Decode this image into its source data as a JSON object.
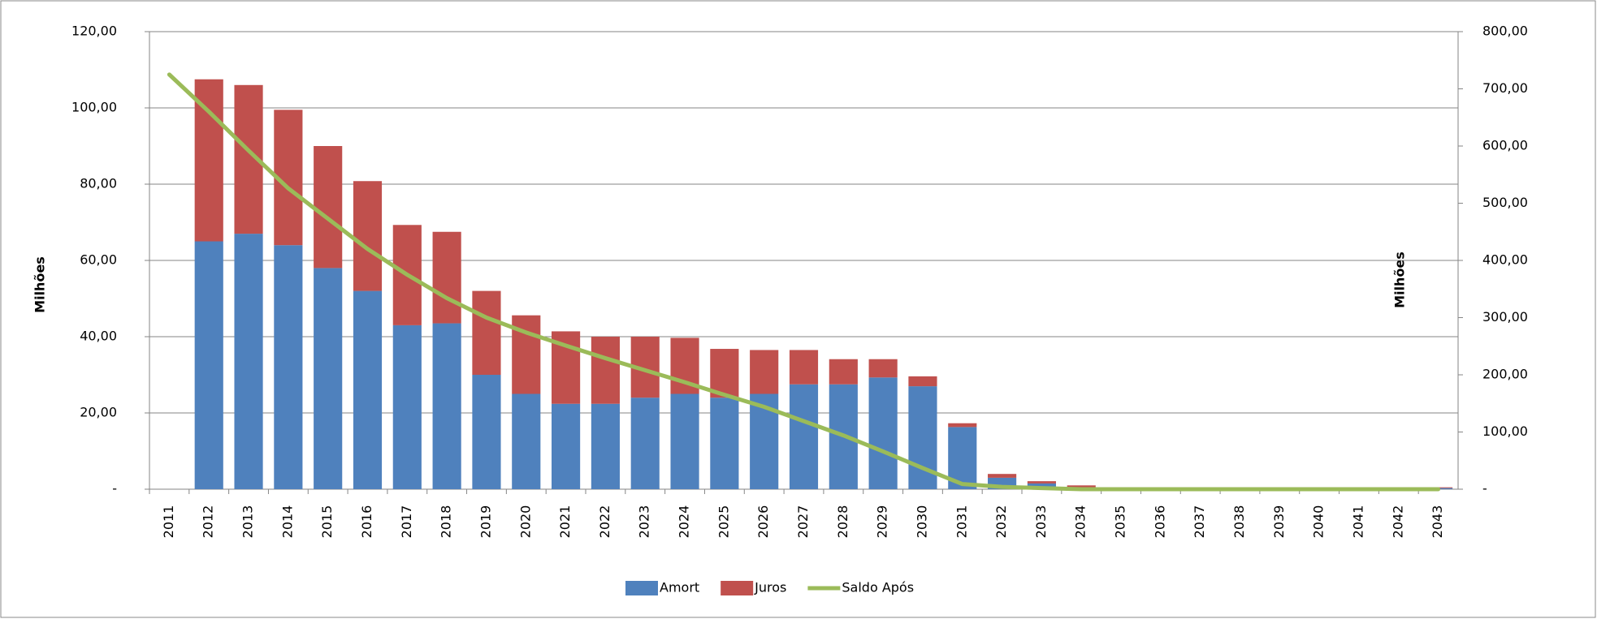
{
  "chart_data": {
    "type": "bar",
    "stacked": true,
    "y_label": "Milhões",
    "y2_label": "Milhões",
    "categories": [
      "2011",
      "2012",
      "2013",
      "2014",
      "2015",
      "2016",
      "2017",
      "2018",
      "2019",
      "2020",
      "2021",
      "2022",
      "2023",
      "2024",
      "2025",
      "2026",
      "2027",
      "2028",
      "2029",
      "2030",
      "2031",
      "2032",
      "2033",
      "2034",
      "2035",
      "2036",
      "2037",
      "2038",
      "2039",
      "2040",
      "2041",
      "2042",
      "2043"
    ],
    "series": [
      {
        "name": "Amort",
        "color": "#4f81bd",
        "type": "bar",
        "values": [
          0,
          65,
          67,
          64,
          58,
          52,
          43,
          43.5,
          30,
          25,
          22.4,
          22.4,
          24,
          25,
          24,
          25,
          27.5,
          27.5,
          29.3,
          27,
          16.3,
          3,
          1.5,
          0.5,
          0,
          0,
          0,
          0,
          0,
          0,
          0,
          0,
          0.3
        ]
      },
      {
        "name": "Juros",
        "color": "#c0504d",
        "type": "bar",
        "values": [
          0,
          42.5,
          39,
          35.5,
          32,
          28.8,
          26.3,
          24,
          22,
          20.6,
          19,
          17.6,
          16,
          14.7,
          12.8,
          11.5,
          9,
          6.6,
          4.8,
          2.6,
          1,
          1,
          0.6,
          0.5,
          0,
          0,
          0,
          0,
          0,
          0,
          0,
          0,
          0.2
        ]
      },
      {
        "name": "Saldo Após",
        "color": "#9bbb59",
        "type": "line",
        "axis": "y2",
        "values": [
          725,
          660,
          592,
          526,
          473,
          420,
          375,
          334,
          300,
          274,
          251,
          229,
          208,
          187,
          165,
          144,
          119,
          94,
          66,
          37,
          9,
          4,
          2,
          0,
          0,
          0,
          0,
          0,
          0,
          0,
          0,
          0,
          0
        ]
      }
    ],
    "ylim": [
      0,
      120
    ],
    "yticks": [
      {
        "value": 0,
        "label": "-"
      },
      {
        "value": 20,
        "label": "20,00"
      },
      {
        "value": 40,
        "label": "40,00"
      },
      {
        "value": 60,
        "label": "60,00"
      },
      {
        "value": 80,
        "label": "80,00"
      },
      {
        "value": 100,
        "label": "100,00"
      },
      {
        "value": 120,
        "label": "120,00"
      }
    ],
    "y2lim": [
      0,
      800
    ],
    "y2ticks": [
      {
        "value": 0,
        "label": "-"
      },
      {
        "value": 100,
        "label": "100,00"
      },
      {
        "value": 200,
        "label": "200,00"
      },
      {
        "value": 300,
        "label": "300,00"
      },
      {
        "value": 400,
        "label": "400,00"
      },
      {
        "value": 500,
        "label": "500,00"
      },
      {
        "value": 600,
        "label": "600,00"
      },
      {
        "value": 700,
        "label": "700,00"
      },
      {
        "value": 800,
        "label": "800,00"
      }
    ],
    "grid": true,
    "legend": "bottom"
  }
}
